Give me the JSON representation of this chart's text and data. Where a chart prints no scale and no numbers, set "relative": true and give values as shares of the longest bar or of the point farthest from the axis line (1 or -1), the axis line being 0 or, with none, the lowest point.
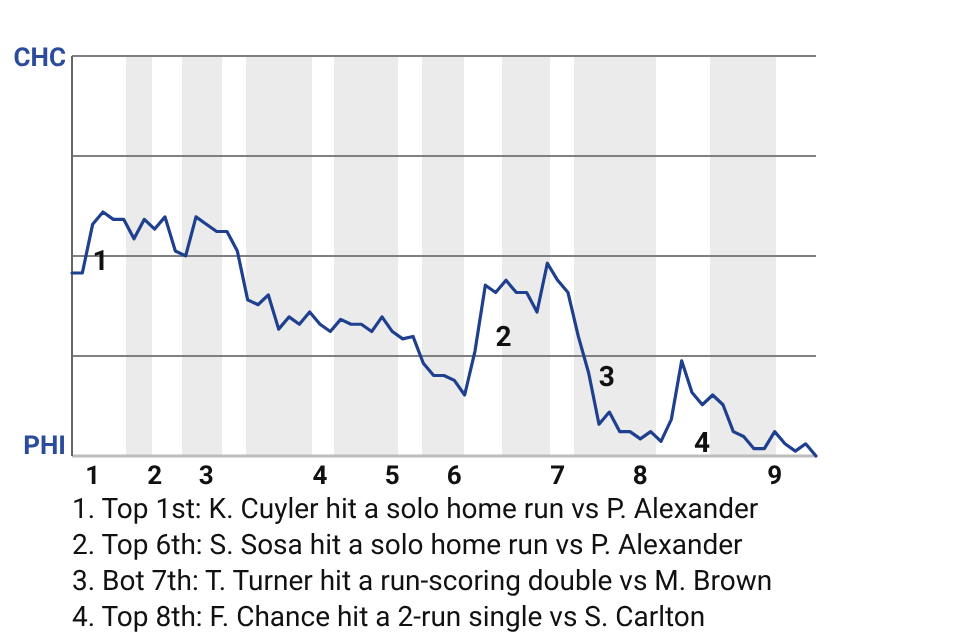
{
  "chart_data": {
    "type": "line",
    "relative": true,
    "categories": [
      null,
      null,
      "1",
      null,
      null,
      null,
      null,
      null,
      "2",
      null,
      null,
      null,
      null,
      "3",
      null,
      null,
      null,
      null,
      null,
      null,
      null,
      null,
      null,
      null,
      "4",
      null,
      null,
      null,
      null,
      null,
      null,
      "5",
      null,
      null,
      null,
      null,
      null,
      "6",
      null,
      null,
      null,
      null,
      null,
      null,
      null,
      null,
      null,
      "7",
      null,
      null,
      null,
      null,
      null,
      null,
      null,
      "8",
      null,
      null,
      null,
      null,
      null,
      null,
      null,
      null,
      null,
      null,
      null,
      null,
      "9",
      null,
      null,
      null,
      null
    ],
    "series": [
      {
        "color": "#1f3f8f",
        "values": [
          0.75,
          0.75,
          0.95,
          1,
          0.97,
          0.97,
          0.89,
          0.97,
          0.93,
          0.98,
          0.84,
          0.82,
          0.98,
          0.95,
          0.92,
          0.92,
          0.84,
          0.64,
          0.62,
          0.66,
          0.52,
          0.57,
          0.54,
          0.59,
          0.54,
          0.51,
          0.56,
          0.54,
          0.54,
          0.51,
          0.57,
          0.51,
          0.48,
          0.49,
          0.38,
          0.33,
          0.33,
          0.31,
          0.25,
          0.43,
          0.7,
          0.67,
          0.72,
          0.67,
          0.67,
          0.59,
          0.79,
          0.72,
          0.67,
          0.49,
          0.34,
          0.13,
          0.18,
          0.1,
          0.1,
          0.07,
          0.1,
          0.06,
          0.15,
          0.39,
          0.26,
          0.21,
          0.25,
          0.21,
          0.1,
          0.08,
          0.03,
          0.03,
          0.1,
          0.05,
          0.02,
          0.05,
          0
        ]
      }
    ],
    "ref_lines": [
      {
        "axis": "y",
        "value": 0.41,
        "color": "#808080"
      },
      {
        "axis": "y",
        "value": 0.82,
        "color": "#808080"
      },
      {
        "axis": "y",
        "value": 1.23,
        "color": "#808080"
      }
    ],
    "annotations": [
      "CHC",
      "PHI",
      "1",
      "2",
      "3",
      "4",
      "1. Top 1st: K. Cuyler hit a solo home run vs P. Alexander",
      "2. Top 6th: S. Sosa hit a solo home run vs P. Alexander",
      "3. Bot 7th: T. Turner hit a run-scoring double vs M. Brown",
      "4. Top 8th: F. Chance hit a 2-run single vs S. Carlton"
    ]
  }
}
